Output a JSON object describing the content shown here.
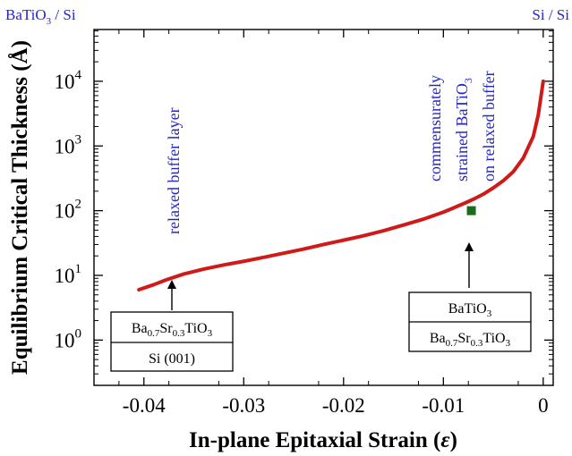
{
  "chart_data": {
    "type": "line",
    "xlabel_main": "In-plane Epitaxial Strain (",
    "xlabel_symbol": "ε",
    "xlabel_close": ")",
    "ylabel": "Equilibrium Critical Thickness (Å)",
    "y_scale": "log",
    "xlim": [
      -0.045,
      0.001
    ],
    "ylim_exponent": [
      -0.7,
      4.8
    ],
    "x_ticks": [
      -0.04,
      -0.03,
      -0.02,
      -0.01,
      0
    ],
    "x_tick_labels": [
      "-0.04",
      "-0.03",
      "-0.02",
      "-0.01",
      "0"
    ],
    "y_ticks": [
      0,
      1,
      2,
      3,
      4
    ],
    "y_tick_base": "10",
    "y_tick_exponents": [
      "0",
      "1",
      "2",
      "3",
      "4"
    ],
    "top_left_label_parts": [
      "BaTiO",
      "3",
      " / Si"
    ],
    "top_right_label": "Si / Si",
    "series": [
      {
        "color": "#d01a1a",
        "x": [
          -0.0405,
          -0.039,
          -0.0378,
          -0.036,
          -0.034,
          -0.032,
          -0.03,
          -0.028,
          -0.026,
          -0.024,
          -0.022,
          -0.02,
          -0.018,
          -0.016,
          -0.014,
          -0.012,
          -0.01,
          -0.009,
          -0.008,
          -0.007,
          -0.006,
          -0.005,
          -0.004,
          -0.003,
          -0.002,
          -0.001,
          -0.0005,
          0
        ],
        "y": [
          6,
          7.2,
          8.5,
          10.5,
          12.5,
          14.5,
          16.5,
          19,
          22,
          25.5,
          30,
          35,
          41,
          49,
          60,
          74,
          95,
          110,
          128,
          150,
          180,
          225,
          290,
          400,
          650,
          1400,
          3000,
          10000
        ]
      }
    ],
    "marker": {
      "x": -0.0072,
      "y": 100,
      "color": "#1a6b1a"
    },
    "annotations": {
      "relaxed": "relaxed buffer layer",
      "comm_line1": "commensurately",
      "comm_line2_prefix": "strained BaTiO",
      "comm_line2_sub": "3",
      "comm_line3": "on relaxed buffer",
      "left_box": {
        "top_parts": [
          "Ba",
          "0.7",
          "Sr",
          "0.3",
          "TiO",
          "3"
        ],
        "bottom": "Si (001)"
      },
      "right_box": {
        "top_parts": [
          "BaTiO",
          "3"
        ],
        "bottom_parts": [
          "Ba",
          "0.7",
          "Sr",
          "0.3",
          "TiO",
          "3"
        ]
      }
    }
  }
}
